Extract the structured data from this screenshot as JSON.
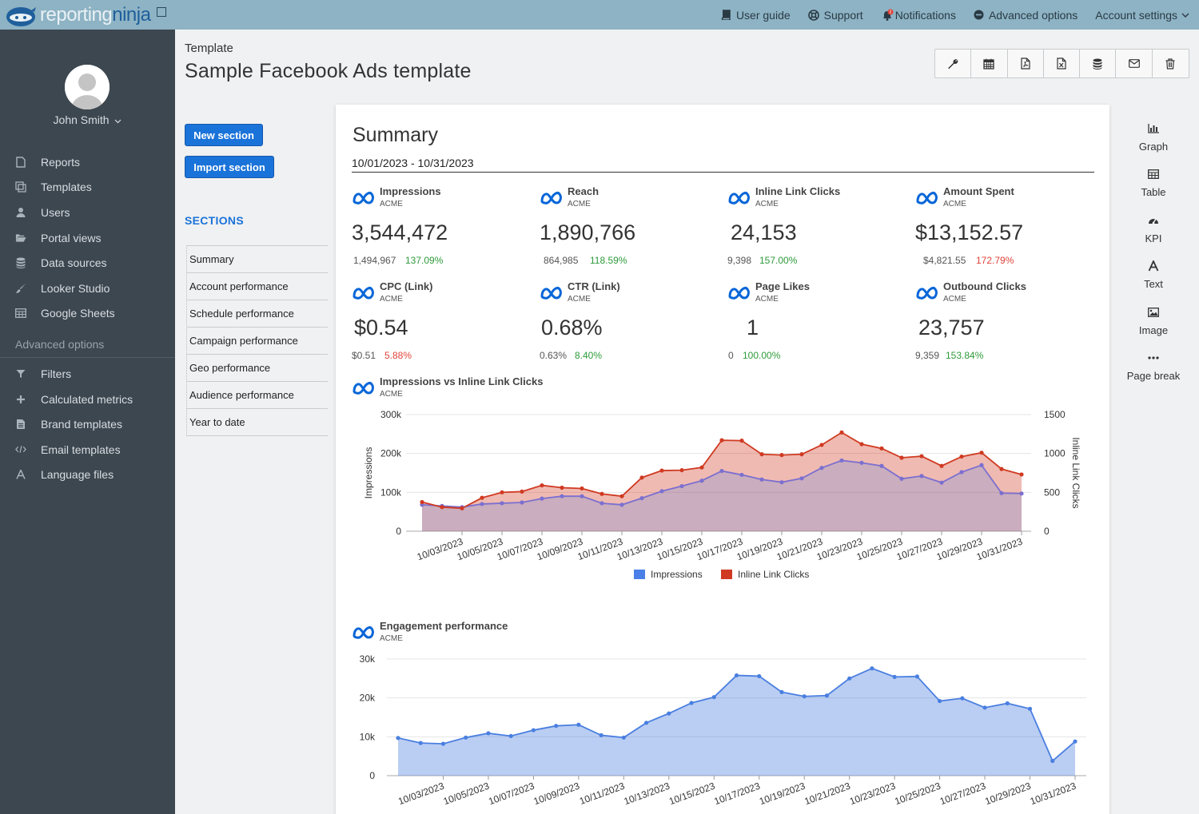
{
  "app": {
    "logo_text_a": "reporting",
    "logo_text_b": "ninja"
  },
  "topnav": {
    "user_guide": "User guide",
    "support": "Support",
    "notifications": "Notifications",
    "advanced_options": "Advanced options",
    "account_settings": "Account settings"
  },
  "sidebar": {
    "user_name": "John Smith",
    "items": [
      {
        "label": "Reports",
        "icon": "file-icon"
      },
      {
        "label": "Templates",
        "icon": "copy-icon"
      },
      {
        "label": "Users",
        "icon": "user-icon"
      },
      {
        "label": "Portal views",
        "icon": "folder-open-icon"
      },
      {
        "label": "Data sources",
        "icon": "database-icon"
      },
      {
        "label": "Looker Studio",
        "icon": "brush-icon"
      },
      {
        "label": "Google Sheets",
        "icon": "table-icon"
      }
    ],
    "advanced_heading": "Advanced options",
    "advanced_items": [
      {
        "label": "Filters",
        "icon": "filter-icon"
      },
      {
        "label": "Calculated metrics",
        "icon": "plus-icon"
      },
      {
        "label": "Brand templates",
        "icon": "file-text-icon"
      },
      {
        "label": "Email templates",
        "icon": "code-icon"
      },
      {
        "label": "Language files",
        "icon": "font-icon"
      }
    ]
  },
  "page": {
    "breadcrumb": "Template",
    "title": "Sample Facebook Ads template"
  },
  "panel": {
    "new_section": "New section",
    "import_section": "Import section",
    "sections_title": "SECTIONS",
    "sections": [
      "Summary",
      "Account performance",
      "Schedule performance",
      "Campaign performance",
      "Geo performance",
      "Audience performance",
      "Year to date"
    ]
  },
  "palette": [
    "Graph",
    "Table",
    "KPI",
    "Text",
    "Image",
    "Page break"
  ],
  "summary": {
    "title": "Summary",
    "date_range": "10/01/2023 - 10/31/2023",
    "kpis": [
      {
        "title": "Impressions",
        "account": "ACME",
        "value": "3,544,472",
        "prev": "1,494,967",
        "change": "137.09%",
        "status": "pos"
      },
      {
        "title": "Reach",
        "account": "ACME",
        "value": "1,890,766",
        "prev": "864,985",
        "change": "118.59%",
        "status": "pos"
      },
      {
        "title": "Inline Link Clicks",
        "account": "ACME",
        "value": "24,153",
        "prev": "9,398",
        "change": "157.00%",
        "status": "pos"
      },
      {
        "title": "Amount Spent",
        "account": "ACME",
        "value": "$13,152.57",
        "prev": "$4,821.55",
        "change": "172.79%",
        "status": "neg"
      },
      {
        "title": "CPC (Link)",
        "account": "ACME",
        "value": "$0.54",
        "prev": "$0.51",
        "change": "5.88%",
        "status": "neg"
      },
      {
        "title": "CTR (Link)",
        "account": "ACME",
        "value": "0.68%",
        "prev": "0.63%",
        "change": "8.40%",
        "status": "pos"
      },
      {
        "title": "Page Likes",
        "account": "ACME",
        "value": "1",
        "prev": "0",
        "change": "100.00%",
        "status": "pos"
      },
      {
        "title": "Outbound Clicks",
        "account": "ACME",
        "value": "23,757",
        "prev": "9,359",
        "change": "153.84%",
        "status": "pos"
      }
    ]
  },
  "colors": {
    "brand_blue": "#1a73d9",
    "impressions": "#4a80e8",
    "clicks": "#d03a22",
    "engagement": "#4a7fe0"
  },
  "chart_data": [
    {
      "type": "area",
      "title": "Impressions vs Inline Link Clicks",
      "subtitle": "ACME",
      "xlabel": "",
      "ylabel": "Impressions",
      "y2label": "Inline Link Clicks",
      "ylim": [
        0,
        300000
      ],
      "y2lim": [
        0,
        1500
      ],
      "yticks": [
        "0",
        "100k",
        "200k",
        "300k"
      ],
      "y2ticks": [
        "0",
        "500",
        "1000",
        "1500"
      ],
      "x": [
        "10/01/2023",
        "10/02/2023",
        "10/03/2023",
        "10/04/2023",
        "10/05/2023",
        "10/06/2023",
        "10/07/2023",
        "10/08/2023",
        "10/09/2023",
        "10/10/2023",
        "10/11/2023",
        "10/12/2023",
        "10/13/2023",
        "10/14/2023",
        "10/15/2023",
        "10/16/2023",
        "10/17/2023",
        "10/18/2023",
        "10/19/2023",
        "10/20/2023",
        "10/21/2023",
        "10/22/2023",
        "10/23/2023",
        "10/24/2023",
        "10/25/2023",
        "10/26/2023",
        "10/27/2023",
        "10/28/2023",
        "10/29/2023",
        "10/30/2023",
        "10/31/2023"
      ],
      "xticks": [
        "10/03/2023",
        "10/05/2023",
        "10/07/2023",
        "10/09/2023",
        "10/11/2023",
        "10/13/2023",
        "10/15/2023",
        "10/17/2023",
        "10/19/2023",
        "10/21/2023",
        "10/23/2023",
        "10/25/2023",
        "10/27/2023",
        "10/29/2023",
        "10/31/2023"
      ],
      "legend": [
        "Impressions",
        "Inline Link Clicks"
      ],
      "series": [
        {
          "name": "Impressions",
          "axis": "left",
          "values": [
            68000,
            65000,
            62000,
            70000,
            72000,
            74000,
            84000,
            90000,
            90000,
            72000,
            68000,
            85000,
            103000,
            116000,
            130000,
            155000,
            145000,
            133000,
            126000,
            136000,
            163000,
            182000,
            176000,
            168000,
            135000,
            142000,
            125000,
            152000,
            170000,
            98000,
            97000
          ]
        },
        {
          "name": "Inline Link Clicks",
          "axis": "right",
          "values": [
            375,
            310,
            295,
            430,
            500,
            510,
            590,
            560,
            550,
            480,
            450,
            690,
            780,
            785,
            820,
            1170,
            1165,
            990,
            980,
            990,
            1110,
            1270,
            1120,
            1065,
            945,
            965,
            840,
            960,
            1010,
            800,
            730
          ]
        }
      ]
    },
    {
      "type": "area",
      "title": "Engagement performance",
      "subtitle": "ACME",
      "xlabel": "",
      "ylabel": "",
      "ylim": [
        0,
        30000
      ],
      "yticks": [
        "0",
        "10k",
        "20k",
        "30k"
      ],
      "x": [
        "10/01/2023",
        "10/02/2023",
        "10/03/2023",
        "10/04/2023",
        "10/05/2023",
        "10/06/2023",
        "10/07/2023",
        "10/08/2023",
        "10/09/2023",
        "10/10/2023",
        "10/11/2023",
        "10/12/2023",
        "10/13/2023",
        "10/14/2023",
        "10/15/2023",
        "10/16/2023",
        "10/17/2023",
        "10/18/2023",
        "10/19/2023",
        "10/20/2023",
        "10/21/2023",
        "10/22/2023",
        "10/23/2023",
        "10/24/2023",
        "10/25/2023",
        "10/26/2023",
        "10/27/2023",
        "10/28/2023",
        "10/29/2023",
        "10/30/2023",
        "10/31/2023"
      ],
      "xticks": [
        "10/03/2023",
        "10/05/2023",
        "10/07/2023",
        "10/09/2023",
        "10/11/2023",
        "10/13/2023",
        "10/15/2023",
        "10/17/2023",
        "10/19/2023",
        "10/21/2023",
        "10/23/2023",
        "10/25/2023",
        "10/27/2023",
        "10/29/2023",
        "10/31/2023"
      ],
      "series": [
        {
          "name": "Engagement",
          "values": [
            9700,
            8400,
            8200,
            9800,
            10900,
            10200,
            11700,
            12800,
            13100,
            10400,
            9800,
            13600,
            16000,
            18700,
            20200,
            25800,
            25600,
            21500,
            20400,
            20600,
            25000,
            27600,
            25400,
            25500,
            19200,
            19900,
            17500,
            18600,
            17200,
            3800,
            8800
          ]
        }
      ]
    }
  ]
}
